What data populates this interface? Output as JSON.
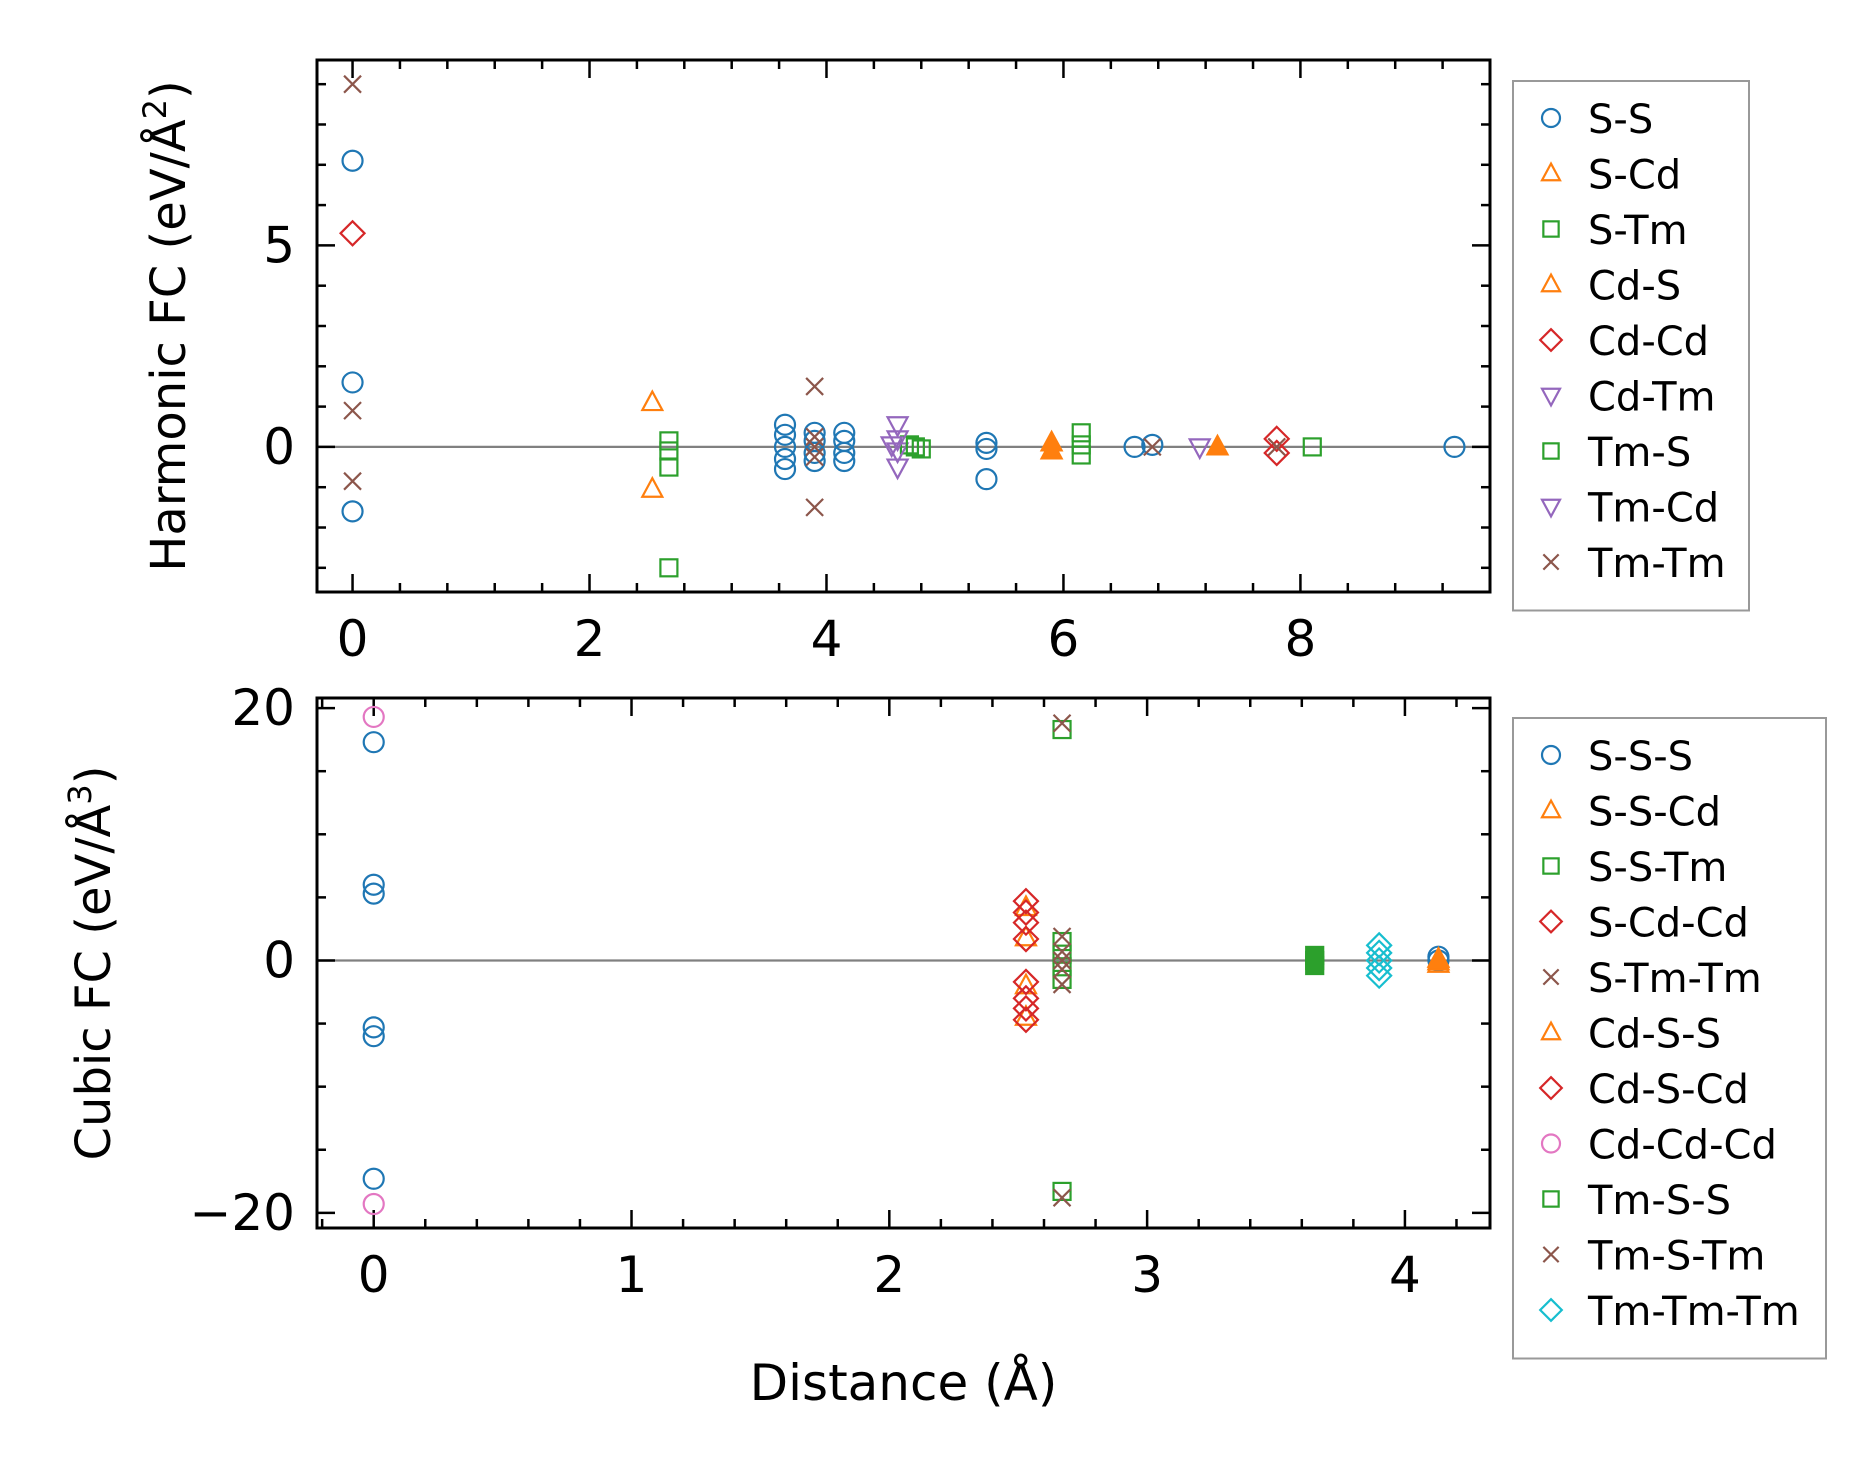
{
  "chart_data": [
    {
      "type": "scatter",
      "panel": "harmonic",
      "title": "",
      "xlabel": "",
      "ylabel_main": "Harmonic FC (eV/Å",
      "ylabel_sup": "2",
      "ylabel_tail": ")",
      "xlim": [
        -0.3,
        9.6
      ],
      "ylim": [
        -3.6,
        9.6
      ],
      "xticks": [
        0,
        2,
        4,
        6,
        8
      ],
      "xtick_labels": [
        "0",
        "2",
        "4",
        "6",
        "8"
      ],
      "yticks": [
        0,
        5
      ],
      "ytick_labels": [
        "0",
        "5"
      ],
      "legend_position": "outside-right",
      "series": [
        {
          "name": "S-S",
          "marker": "circle",
          "color": "#1f77b4",
          "filled": false,
          "points": [
            [
              0,
              7.1
            ],
            [
              0,
              1.6
            ],
            [
              0,
              -1.6
            ],
            [
              3.65,
              0.55
            ],
            [
              3.65,
              0.3
            ],
            [
              3.65,
              0.0
            ],
            [
              3.65,
              -0.3
            ],
            [
              3.65,
              -0.55
            ],
            [
              3.9,
              0.35
            ],
            [
              3.9,
              0.15
            ],
            [
              3.9,
              -0.15
            ],
            [
              3.9,
              -0.35
            ],
            [
              4.15,
              0.35
            ],
            [
              4.15,
              0.15
            ],
            [
              4.15,
              -0.15
            ],
            [
              4.15,
              -0.35
            ],
            [
              5.35,
              0.1
            ],
            [
              5.35,
              -0.05
            ],
            [
              5.35,
              -0.8
            ],
            [
              6.6,
              0.0
            ],
            [
              6.75,
              0.05
            ],
            [
              9.3,
              0.0
            ]
          ]
        },
        {
          "name": "S-Cd",
          "marker": "triangle-up",
          "color": "#ff7f0e",
          "filled": false,
          "points": [
            [
              2.53,
              1.1
            ],
            [
              2.53,
              -1.05
            ]
          ]
        },
        {
          "name": "S-Tm",
          "marker": "square",
          "color": "#2ca02c",
          "filled": false,
          "points": [
            [
              2.67,
              0.15
            ],
            [
              2.67,
              -0.1
            ],
            [
              2.67,
              -0.5
            ],
            [
              2.67,
              -3.0
            ],
            [
              4.7,
              0.05
            ],
            [
              4.8,
              -0.05
            ],
            [
              6.15,
              0.35
            ],
            [
              6.15,
              0.05
            ],
            [
              6.15,
              -0.2
            ],
            [
              8.1,
              0.0
            ]
          ]
        },
        {
          "name": "Cd-S",
          "marker": "triangle-up",
          "color": "#ff7f0e",
          "filled": true,
          "points": [
            [
              5.9,
              0.1
            ],
            [
              5.9,
              -0.1
            ],
            [
              7.3,
              0.0
            ]
          ]
        },
        {
          "name": "Cd-Cd",
          "marker": "diamond",
          "color": "#d62728",
          "filled": false,
          "points": [
            [
              0,
              5.3
            ],
            [
              7.8,
              0.2
            ],
            [
              7.8,
              -0.15
            ]
          ]
        },
        {
          "name": "Cd-Tm",
          "marker": "triangle-down",
          "color": "#9467bd",
          "filled": false,
          "points": [
            [
              4.6,
              0.55
            ],
            [
              4.6,
              0.2
            ],
            [
              4.6,
              -0.1
            ],
            [
              4.6,
              -0.5
            ],
            [
              7.15,
              0.0
            ]
          ]
        },
        {
          "name": "Tm-S",
          "marker": "square",
          "color": "#2ca02c",
          "filled": false,
          "points": [
            [
              4.75,
              0.0
            ]
          ]
        },
        {
          "name": "Tm-Cd",
          "marker": "triangle-down",
          "color": "#9467bd",
          "filled": false,
          "points": [
            [
              4.55,
              0.05
            ]
          ]
        },
        {
          "name": "Tm-Tm",
          "marker": "x",
          "color": "#8c564b",
          "filled": false,
          "points": [
            [
              0,
              9.0
            ],
            [
              0,
              0.9
            ],
            [
              0,
              -0.85
            ],
            [
              3.9,
              1.5
            ],
            [
              3.9,
              0.25
            ],
            [
              3.9,
              0.0
            ],
            [
              3.9,
              -0.25
            ],
            [
              3.9,
              -1.5
            ],
            [
              6.75,
              0.0
            ],
            [
              7.8,
              0.0
            ]
          ]
        }
      ]
    },
    {
      "type": "scatter",
      "panel": "cubic",
      "title": "",
      "xlabel": "Distance (Å)",
      "ylabel_main": "Cubic FC (eV/Å",
      "ylabel_sup": "3",
      "ylabel_tail": ")",
      "xlim": [
        -0.22,
        4.33
      ],
      "ylim": [
        -21.2,
        20.8
      ],
      "xticks": [
        0,
        1,
        2,
        3,
        4
      ],
      "xtick_labels": [
        "0",
        "1",
        "2",
        "3",
        "4"
      ],
      "yticks": [
        -20,
        0,
        20
      ],
      "ytick_labels": [
        "−20",
        "0",
        "20"
      ],
      "legend_position": "outside-right",
      "series": [
        {
          "name": "S-S-S",
          "marker": "circle",
          "color": "#1f77b4",
          "filled": false,
          "points": [
            [
              0,
              17.3
            ],
            [
              0,
              6.0
            ],
            [
              0,
              5.3
            ],
            [
              0,
              -5.3
            ],
            [
              0,
              -6.0
            ],
            [
              0,
              -17.3
            ],
            [
              4.13,
              0.3
            ],
            [
              4.13,
              0.0
            ]
          ]
        },
        {
          "name": "S-S-Cd",
          "marker": "triangle-up",
          "color": "#ff7f0e",
          "filled": false,
          "points": [
            [
              2.53,
              4.2
            ],
            [
              2.53,
              1.8
            ],
            [
              2.53,
              -2.0
            ],
            [
              2.53,
              -4.5
            ],
            [
              4.13,
              -0.3
            ]
          ]
        },
        {
          "name": "S-S-Tm",
          "marker": "square",
          "color": "#2ca02c",
          "filled": false,
          "points": [
            [
              2.67,
              18.3
            ],
            [
              2.67,
              1.5
            ],
            [
              2.67,
              0.5
            ],
            [
              2.67,
              -0.5
            ],
            [
              2.67,
              -1.5
            ],
            [
              2.67,
              -18.3
            ]
          ]
        },
        {
          "name": "S-Cd-Cd",
          "marker": "diamond",
          "color": "#d62728",
          "filled": false,
          "points": [
            [
              2.53,
              4.7
            ],
            [
              2.53,
              3.8
            ],
            [
              2.53,
              1.7
            ],
            [
              2.53,
              -1.7
            ],
            [
              2.53,
              -3.8
            ],
            [
              2.53,
              -4.7
            ]
          ]
        },
        {
          "name": "S-Tm-Tm",
          "marker": "x",
          "color": "#8c564b",
          "filled": false,
          "points": [
            [
              2.67,
              18.8
            ],
            [
              2.67,
              1.9
            ],
            [
              2.67,
              0.7
            ],
            [
              2.67,
              -0.7
            ],
            [
              2.67,
              -1.9
            ],
            [
              2.67,
              -18.8
            ]
          ]
        },
        {
          "name": "Cd-S-S",
          "marker": "triangle-up",
          "color": "#ff7f0e",
          "filled": true,
          "points": [
            [
              4.13,
              0.1
            ],
            [
              4.13,
              -0.1
            ]
          ]
        },
        {
          "name": "Cd-S-Cd",
          "marker": "diamond",
          "color": "#d62728",
          "filled": false,
          "points": [
            [
              2.53,
              3.0
            ],
            [
              2.53,
              -3.0
            ]
          ]
        },
        {
          "name": "Cd-Cd-Cd",
          "marker": "circle",
          "color": "#e377c2",
          "filled": false,
          "points": [
            [
              0,
              19.3
            ],
            [
              0,
              -19.3
            ]
          ]
        },
        {
          "name": "Tm-S-S",
          "marker": "square",
          "color": "#2ca02c",
          "filled": true,
          "points": [
            [
              3.65,
              0.4
            ],
            [
              3.65,
              0.0
            ],
            [
              3.65,
              -0.4
            ]
          ]
        },
        {
          "name": "Tm-S-Tm",
          "marker": "x",
          "color": "#8c564b",
          "filled": false,
          "points": [
            [
              2.67,
              0.0
            ]
          ]
        },
        {
          "name": "Tm-Tm-Tm",
          "marker": "diamond",
          "color": "#17becf",
          "filled": false,
          "points": [
            [
              3.9,
              1.2
            ],
            [
              3.9,
              0.6
            ],
            [
              3.9,
              0.0
            ],
            [
              3.9,
              -0.6
            ],
            [
              3.9,
              -1.2
            ]
          ]
        }
      ]
    }
  ]
}
